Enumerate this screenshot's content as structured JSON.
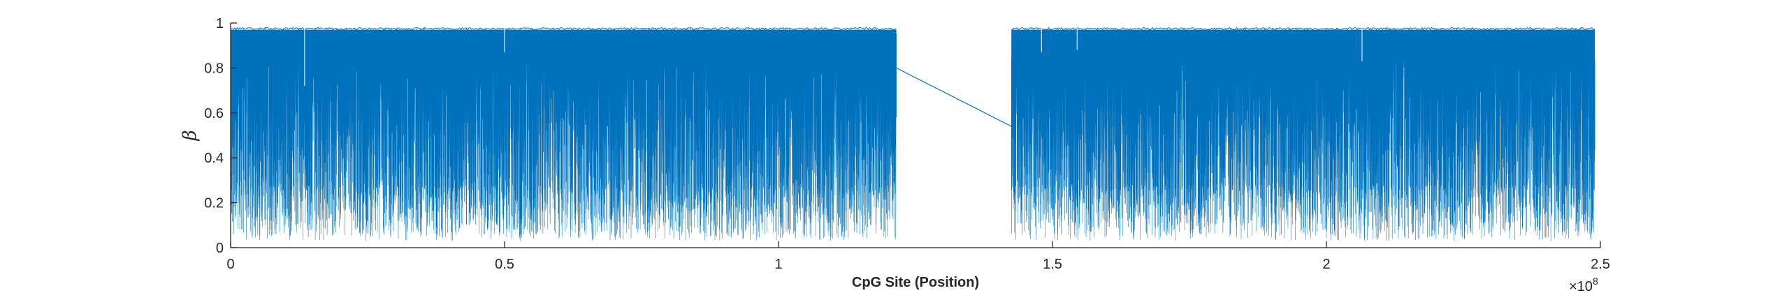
{
  "chart_data": {
    "type": "line",
    "title": "",
    "xlabel": "CpG Site (Position)",
    "ylabel": "β",
    "xlim": [
      0,
      250000000
    ],
    "ylim": [
      0,
      1
    ],
    "x_exponent_label": "×10",
    "x_exponent_power": "8",
    "xticks": [
      0,
      50000000,
      100000000,
      150000000,
      200000000,
      250000000
    ],
    "xtick_labels": [
      "0",
      "0.5",
      "1",
      "1.5",
      "2",
      "2.5"
    ],
    "yticks": [
      0,
      0.2,
      0.4,
      0.6,
      0.8,
      1
    ],
    "ytick_labels": [
      "0",
      "0.2",
      "0.4",
      "0.6",
      "0.8",
      "1"
    ],
    "grid": false,
    "color": "#0072BD",
    "series": [
      {
        "segments": [
          {
            "x_start": 0,
            "x_end": 121500000
          },
          {
            "x_start": 142500000,
            "x_end": 249000000
          }
        ],
        "gap_connector": {
          "x": [
            121500000,
            142500000
          ],
          "y": [
            0.8,
            0.54
          ]
        },
        "value_range": {
          "min": 0.03,
          "max": 0.98
        },
        "dense_band": {
          "low": 0.83,
          "high": 0.97
        },
        "dips": [
          {
            "x": 13500000,
            "y": 0.72
          },
          {
            "x": 50000000,
            "y": 0.87
          },
          {
            "x": 148000000,
            "y": 0.87
          },
          {
            "x": 154500000,
            "y": 0.88
          },
          {
            "x": 206500000,
            "y": 0.83
          }
        ]
      }
    ]
  }
}
